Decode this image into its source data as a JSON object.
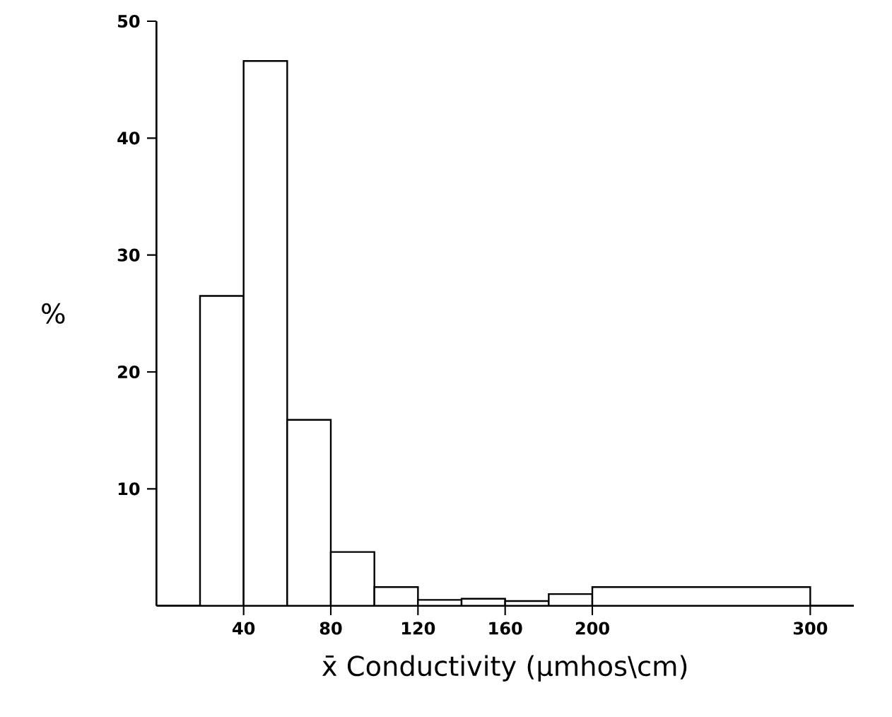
{
  "chart_data": {
    "type": "histogram",
    "bins": [
      20,
      40,
      60,
      80,
      100,
      120,
      140,
      160,
      180,
      200,
      300
    ],
    "values": [
      26.5,
      46.6,
      15.9,
      4.6,
      1.6,
      0.5,
      0.6,
      0.4,
      1.0,
      1.6
    ],
    "color": "#ffffff",
    "xlabel": "x̄ Conductivity  (µmhos\\cm)",
    "ylabel": "%",
    "xlim": [
      0,
      320
    ],
    "ylim": [
      0,
      50
    ],
    "xticks": [
      40,
      80,
      120,
      160,
      200,
      300
    ],
    "yticks": [
      10,
      20,
      30,
      40,
      50
    ]
  }
}
